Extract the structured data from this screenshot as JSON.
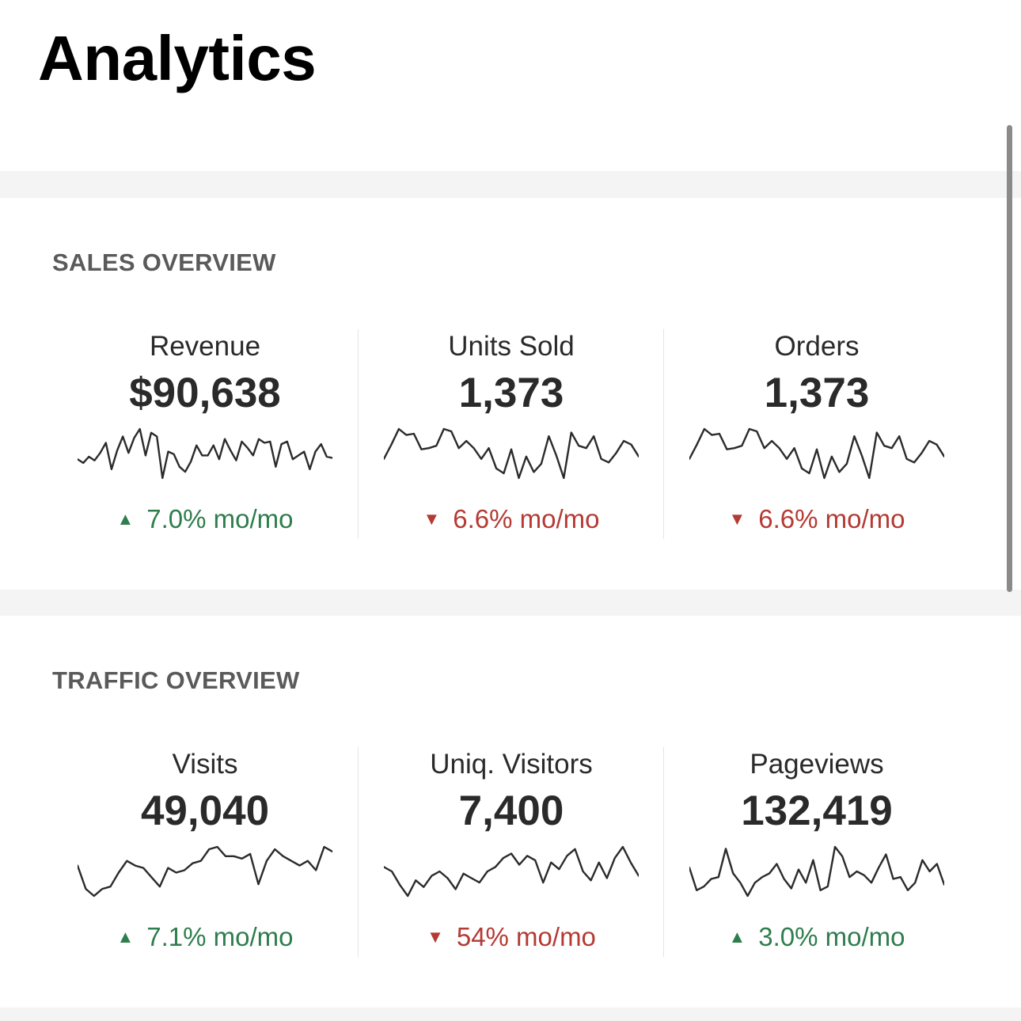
{
  "header": {
    "title": "Analytics"
  },
  "colors": {
    "positive": "#2f7d4d",
    "negative": "#b53a34",
    "sparkline": "#2b2b2b",
    "section_gap": "#f4f4f4"
  },
  "sections": [
    {
      "title": "SALES OVERVIEW",
      "metrics": [
        {
          "label": "Revenue",
          "value": "$90,638",
          "change": "7.0% mo/mo",
          "direction": "up",
          "icon": "triangle-up-icon",
          "sparkline": [
            20,
            17,
            22,
            19,
            25,
            33,
            12,
            27,
            38,
            25,
            37,
            44,
            23,
            41,
            38,
            5,
            26,
            24,
            14,
            10,
            18,
            31,
            23,
            23,
            31,
            20,
            36,
            27,
            19,
            34,
            29,
            23,
            36,
            33,
            34,
            14,
            32,
            34,
            20,
            23,
            26,
            12,
            26,
            32,
            22,
            21
          ]
        },
        {
          "label": "Units Sold",
          "value": "1,373",
          "change": "6.6% mo/mo",
          "direction": "down",
          "icon": "triangle-down-icon",
          "sparkline": [
            22,
            34,
            47,
            42,
            43,
            30,
            31,
            33,
            47,
            45,
            31,
            37,
            31,
            22,
            31,
            14,
            10,
            30,
            6,
            24,
            11,
            18,
            41,
            25,
            6,
            44,
            33,
            31,
            41,
            22,
            19,
            27,
            37,
            34,
            24
          ]
        },
        {
          "label": "Orders",
          "value": "1,373",
          "change": "6.6% mo/mo",
          "direction": "down",
          "icon": "triangle-down-icon",
          "sparkline": [
            22,
            34,
            47,
            42,
            43,
            30,
            31,
            33,
            47,
            45,
            31,
            37,
            31,
            22,
            31,
            14,
            10,
            30,
            6,
            24,
            11,
            18,
            41,
            25,
            6,
            44,
            33,
            31,
            41,
            22,
            19,
            27,
            37,
            34,
            24
          ]
        }
      ]
    },
    {
      "title": "TRAFFIC OVERVIEW",
      "metrics": [
        {
          "label": "Visits",
          "value": "49,040",
          "change": "7.1% mo/mo",
          "direction": "up",
          "icon": "triangle-up-icon",
          "sparkline": [
            18,
            8,
            5,
            8,
            9,
            15,
            20,
            18,
            17,
            13,
            9,
            17,
            15,
            16,
            19,
            20,
            25,
            26,
            22,
            22,
            21,
            23,
            10,
            20,
            25,
            22,
            20,
            18,
            20,
            16,
            26,
            24
          ]
        },
        {
          "label": "Uniq. Visitors",
          "value": "7,400",
          "change": "54% mo/mo",
          "direction": "down",
          "icon": "triangle-down-icon",
          "sparkline": [
            18,
            16,
            10,
            5,
            12,
            9,
            14,
            16,
            13,
            8,
            15,
            13,
            11,
            16,
            18,
            22,
            24,
            19,
            23,
            21,
            11,
            20,
            17,
            23,
            26,
            16,
            12,
            20,
            13,
            22,
            27,
            20,
            14
          ]
        },
        {
          "label": "Pageviews",
          "value": "132,419",
          "change": "3.0% mo/mo",
          "direction": "up",
          "icon": "triangle-up-icon",
          "sparkline": [
            20,
            8,
            10,
            14,
            15,
            30,
            17,
            12,
            5,
            12,
            15,
            17,
            22,
            14,
            9,
            19,
            12,
            24,
            8,
            10,
            31,
            26,
            15,
            18,
            16,
            12,
            20,
            27,
            14,
            15,
            8,
            12,
            24,
            18,
            22,
            11
          ]
        }
      ]
    }
  ]
}
